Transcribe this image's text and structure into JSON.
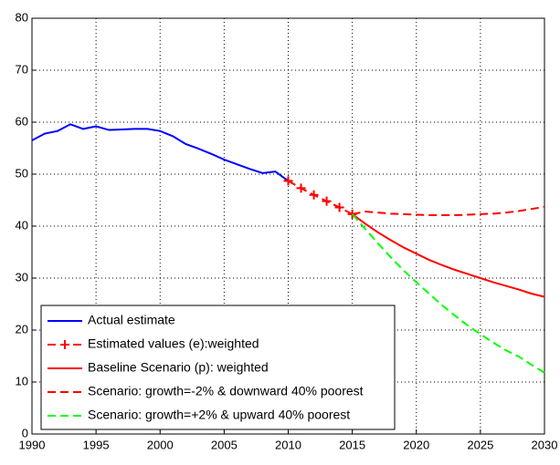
{
  "chart_data": {
    "type": "line",
    "x": [
      1990,
      1991,
      1992,
      1993,
      1994,
      1995,
      1996,
      1997,
      1998,
      1999,
      2000,
      2001,
      2002,
      2003,
      2004,
      2005,
      2006,
      2007,
      2008,
      2009,
      2010,
      2011,
      2012,
      2013,
      2014,
      2015,
      2016,
      2017,
      2018,
      2019,
      2020,
      2021,
      2022,
      2023,
      2024,
      2025,
      2026,
      2027,
      2028,
      2029,
      2030
    ],
    "series": [
      {
        "name": "Actual estimate",
        "color": "#0000ff",
        "dash": false,
        "marker": null,
        "values": [
          56.5,
          57.8,
          58.3,
          59.6,
          58.7,
          59.2,
          58.5,
          58.6,
          58.7,
          58.7,
          58.3,
          57.3,
          55.8,
          54.9,
          53.9,
          52.8,
          51.9,
          51.0,
          50.2,
          50.5,
          48.7,
          null,
          null,
          null,
          null,
          null,
          null,
          null,
          null,
          null,
          null,
          null,
          null,
          null,
          null,
          null,
          null,
          null,
          null,
          null,
          null
        ]
      },
      {
        "name": "Estimated values (e):weighted",
        "color": "#ff0000",
        "dash": true,
        "marker": "+",
        "values": [
          null,
          null,
          null,
          null,
          null,
          null,
          null,
          null,
          null,
          null,
          null,
          null,
          null,
          null,
          null,
          null,
          null,
          null,
          null,
          null,
          48.7,
          47.3,
          46.0,
          44.8,
          43.6,
          42.3,
          null,
          null,
          null,
          null,
          null,
          null,
          null,
          null,
          null,
          null,
          null,
          null,
          null,
          null,
          null
        ]
      },
      {
        "name": "Baseline Scenario (p): weighted",
        "color": "#ff0000",
        "dash": false,
        "marker": null,
        "values": [
          null,
          null,
          null,
          null,
          null,
          null,
          null,
          null,
          null,
          null,
          null,
          null,
          null,
          null,
          null,
          null,
          null,
          null,
          null,
          null,
          null,
          null,
          null,
          null,
          null,
          42.3,
          40.5,
          38.8,
          37.3,
          35.9,
          34.7,
          33.5,
          32.5,
          31.6,
          30.8,
          30.0,
          29.2,
          28.5,
          27.8,
          27.0,
          26.4
        ]
      },
      {
        "name": "Scenario: growth=-2% & downward 40% poorest",
        "color": "#ff0000",
        "dash": true,
        "marker": null,
        "values": [
          null,
          null,
          null,
          null,
          null,
          null,
          null,
          null,
          null,
          null,
          null,
          null,
          null,
          null,
          null,
          null,
          null,
          null,
          null,
          null,
          null,
          null,
          null,
          null,
          null,
          42.3,
          42.8,
          42.6,
          42.4,
          42.3,
          42.2,
          42.1,
          42.1,
          42.1,
          42.2,
          42.3,
          42.4,
          42.6,
          42.9,
          43.3,
          43.7
        ]
      },
      {
        "name": "Scenario: growth=+2% & upward 40% poorest",
        "color": "#00ff00",
        "dash": true,
        "marker": null,
        "values": [
          null,
          null,
          null,
          null,
          null,
          null,
          null,
          null,
          null,
          null,
          null,
          null,
          null,
          null,
          null,
          null,
          null,
          null,
          null,
          null,
          null,
          null,
          null,
          null,
          null,
          42.3,
          39.5,
          36.7,
          34.0,
          31.5,
          29.2,
          27.0,
          24.8,
          22.8,
          20.9,
          19.2,
          17.6,
          16.1,
          14.9,
          13.3,
          11.8
        ]
      }
    ],
    "xlim": [
      1990,
      2030
    ],
    "xticks": [
      1990,
      1995,
      2000,
      2005,
      2010,
      2015,
      2020,
      2025,
      2030
    ],
    "ylim": [
      0,
      80
    ],
    "yticks": [
      0,
      10,
      20,
      30,
      40,
      50,
      60,
      70,
      80
    ],
    "grid": true,
    "legend": "lower left"
  }
}
